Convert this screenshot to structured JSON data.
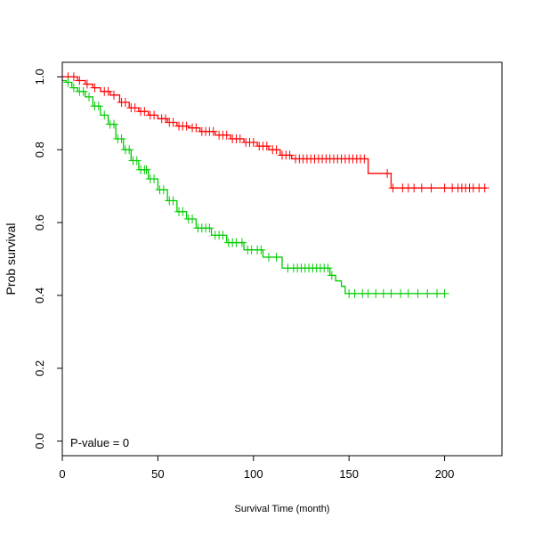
{
  "chart_data": {
    "type": "line",
    "subtype": "kaplan-meier survival curve",
    "title": "",
    "xlabel": "Survival Time (month)",
    "ylabel": "Prob survival",
    "xlim": [
      0,
      230
    ],
    "ylim": [
      -0.04,
      1.04
    ],
    "x_ticks": [
      0,
      50,
      100,
      150,
      200
    ],
    "x_tick_labels": [
      "0",
      "50",
      "100",
      "150",
      "200"
    ],
    "y_ticks": [
      0.0,
      0.2,
      0.4,
      0.6,
      0.8,
      1.0
    ],
    "y_tick_labels": [
      "0.0",
      "0.2",
      "0.4",
      "0.6",
      "0.8",
      "1.0"
    ],
    "grid": false,
    "legend": "none",
    "annotations": [
      {
        "text": "P-value = 0",
        "position": "bottom-left"
      }
    ],
    "series": [
      {
        "color": "#ff0000",
        "steps": [
          [
            0,
            1.0
          ],
          [
            8,
            0.99
          ],
          [
            12,
            0.98
          ],
          [
            16,
            0.97
          ],
          [
            20,
            0.96
          ],
          [
            25,
            0.95
          ],
          [
            30,
            0.93
          ],
          [
            35,
            0.915
          ],
          [
            40,
            0.905
          ],
          [
            45,
            0.895
          ],
          [
            50,
            0.885
          ],
          [
            55,
            0.875
          ],
          [
            60,
            0.865
          ],
          [
            66,
            0.86
          ],
          [
            72,
            0.85
          ],
          [
            80,
            0.84
          ],
          [
            88,
            0.83
          ],
          [
            95,
            0.82
          ],
          [
            102,
            0.81
          ],
          [
            108,
            0.8
          ],
          [
            114,
            0.785
          ],
          [
            120,
            0.775
          ],
          [
            160,
            0.735
          ],
          [
            172,
            0.695
          ],
          [
            222,
            0.695
          ]
        ],
        "censored_x": [
          3,
          6,
          9,
          13,
          17,
          22,
          24,
          27,
          31,
          33,
          36,
          38,
          41,
          43,
          46,
          48,
          52,
          54,
          56,
          58,
          61,
          63,
          65,
          68,
          70,
          73,
          75,
          77,
          79,
          82,
          84,
          86,
          89,
          91,
          93,
          96,
          98,
          100,
          103,
          105,
          107,
          110,
          112,
          115,
          117,
          119,
          122,
          124,
          126,
          128,
          130,
          132,
          134,
          136,
          138,
          140,
          142,
          144,
          146,
          148,
          150,
          152,
          154,
          156,
          158,
          170,
          173,
          178,
          181,
          184,
          188,
          193,
          200,
          204,
          207,
          209,
          211,
          213,
          215,
          218,
          221
        ]
      },
      {
        "color": "#00cc00",
        "steps": [
          [
            0,
            0.99
          ],
          [
            2,
            0.985
          ],
          [
            5,
            0.97
          ],
          [
            8,
            0.96
          ],
          [
            12,
            0.945
          ],
          [
            16,
            0.92
          ],
          [
            20,
            0.895
          ],
          [
            24,
            0.87
          ],
          [
            28,
            0.83
          ],
          [
            32,
            0.8
          ],
          [
            36,
            0.77
          ],
          [
            40,
            0.745
          ],
          [
            45,
            0.72
          ],
          [
            50,
            0.69
          ],
          [
            55,
            0.66
          ],
          [
            60,
            0.63
          ],
          [
            65,
            0.61
          ],
          [
            70,
            0.585
          ],
          [
            78,
            0.565
          ],
          [
            86,
            0.545
          ],
          [
            95,
            0.525
          ],
          [
            105,
            0.505
          ],
          [
            115,
            0.475
          ],
          [
            140,
            0.455
          ],
          [
            143,
            0.44
          ],
          [
            146,
            0.425
          ],
          [
            148,
            0.405
          ],
          [
            200,
            0.405
          ]
        ],
        "censored_x": [
          3,
          6,
          9,
          11,
          14,
          17,
          19,
          22,
          25,
          27,
          29,
          31,
          33,
          35,
          37,
          39,
          41,
          43,
          44,
          46,
          48,
          51,
          53,
          56,
          58,
          61,
          63,
          66,
          68,
          71,
          73,
          75,
          77,
          80,
          82,
          84,
          87,
          89,
          91,
          94,
          97,
          99,
          102,
          104,
          108,
          112,
          118,
          121,
          123,
          125,
          127,
          129,
          131,
          133,
          135,
          137,
          139,
          141,
          150,
          153,
          157,
          160,
          164,
          168,
          172,
          177,
          181,
          186,
          191,
          196,
          200
        ]
      }
    ]
  }
}
